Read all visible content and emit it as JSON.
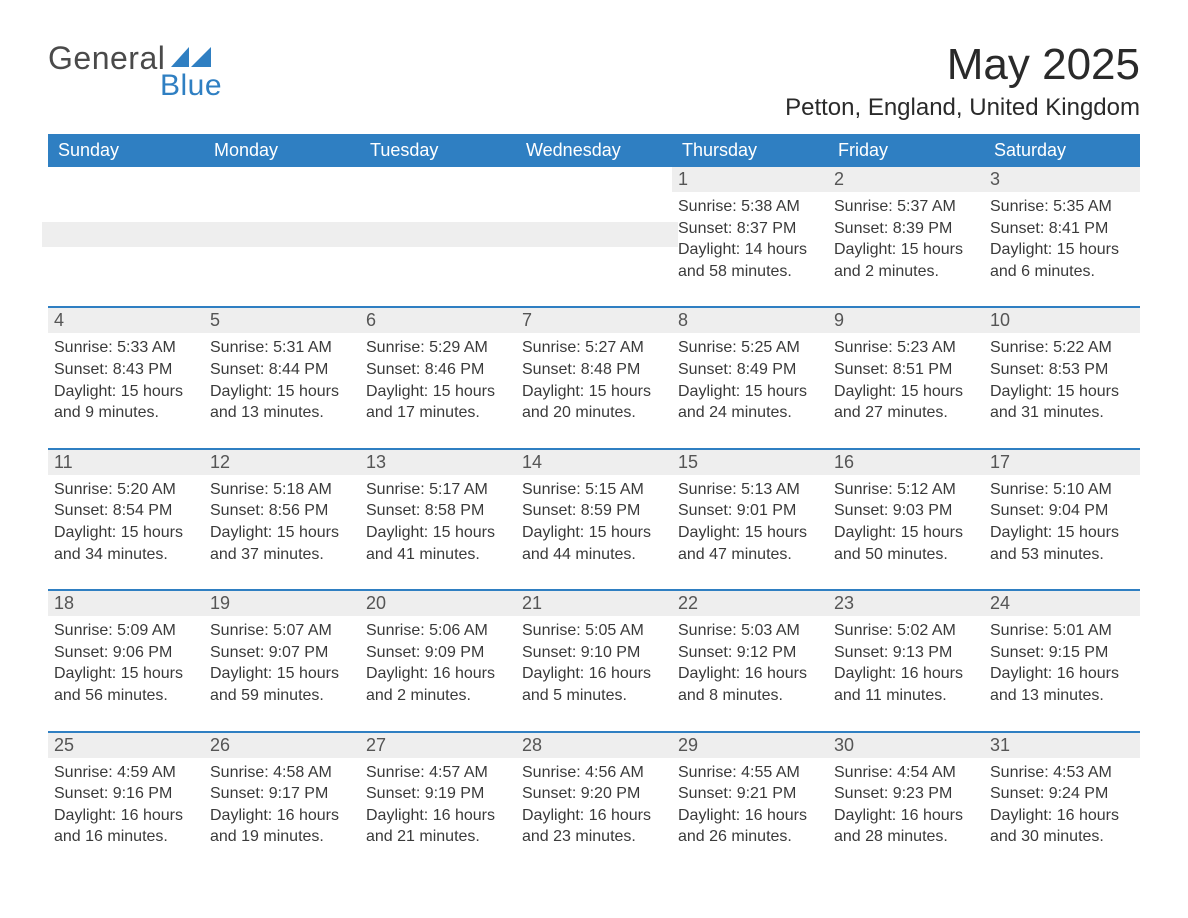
{
  "logo": {
    "general": "General",
    "blue": "Blue"
  },
  "colors": {
    "accent": "#2f7fc2",
    "header_text": "#ffffff",
    "daynum_bg": "#eeeeee",
    "text": "#3a3a3a",
    "page_bg": "#ffffff"
  },
  "typography": {
    "title_fontsize": 44,
    "location_fontsize": 24,
    "header_fontsize": 18,
    "daynum_fontsize": 18,
    "body_fontsize": 16,
    "font_family": "Arial"
  },
  "title": "May 2025",
  "location": "Petton, England, United Kingdom",
  "weekday_headers": [
    "Sunday",
    "Monday",
    "Tuesday",
    "Wednesday",
    "Thursday",
    "Friday",
    "Saturday"
  ],
  "calendar": {
    "type": "table",
    "columns": 7,
    "rows": [
      [
        {
          "blank": true
        },
        {
          "blank": true
        },
        {
          "blank": true
        },
        {
          "blank": true
        },
        {
          "day": "1",
          "sunrise": "Sunrise: 5:38 AM",
          "sunset": "Sunset: 8:37 PM",
          "daylight": "Daylight: 14 hours and 58 minutes."
        },
        {
          "day": "2",
          "sunrise": "Sunrise: 5:37 AM",
          "sunset": "Sunset: 8:39 PM",
          "daylight": "Daylight: 15 hours and 2 minutes."
        },
        {
          "day": "3",
          "sunrise": "Sunrise: 5:35 AM",
          "sunset": "Sunset: 8:41 PM",
          "daylight": "Daylight: 15 hours and 6 minutes."
        }
      ],
      [
        {
          "day": "4",
          "sunrise": "Sunrise: 5:33 AM",
          "sunset": "Sunset: 8:43 PM",
          "daylight": "Daylight: 15 hours and 9 minutes."
        },
        {
          "day": "5",
          "sunrise": "Sunrise: 5:31 AM",
          "sunset": "Sunset: 8:44 PM",
          "daylight": "Daylight: 15 hours and 13 minutes."
        },
        {
          "day": "6",
          "sunrise": "Sunrise: 5:29 AM",
          "sunset": "Sunset: 8:46 PM",
          "daylight": "Daylight: 15 hours and 17 minutes."
        },
        {
          "day": "7",
          "sunrise": "Sunrise: 5:27 AM",
          "sunset": "Sunset: 8:48 PM",
          "daylight": "Daylight: 15 hours and 20 minutes."
        },
        {
          "day": "8",
          "sunrise": "Sunrise: 5:25 AM",
          "sunset": "Sunset: 8:49 PM",
          "daylight": "Daylight: 15 hours and 24 minutes."
        },
        {
          "day": "9",
          "sunrise": "Sunrise: 5:23 AM",
          "sunset": "Sunset: 8:51 PM",
          "daylight": "Daylight: 15 hours and 27 minutes."
        },
        {
          "day": "10",
          "sunrise": "Sunrise: 5:22 AM",
          "sunset": "Sunset: 8:53 PM",
          "daylight": "Daylight: 15 hours and 31 minutes."
        }
      ],
      [
        {
          "day": "11",
          "sunrise": "Sunrise: 5:20 AM",
          "sunset": "Sunset: 8:54 PM",
          "daylight": "Daylight: 15 hours and 34 minutes."
        },
        {
          "day": "12",
          "sunrise": "Sunrise: 5:18 AM",
          "sunset": "Sunset: 8:56 PM",
          "daylight": "Daylight: 15 hours and 37 minutes."
        },
        {
          "day": "13",
          "sunrise": "Sunrise: 5:17 AM",
          "sunset": "Sunset: 8:58 PM",
          "daylight": "Daylight: 15 hours and 41 minutes."
        },
        {
          "day": "14",
          "sunrise": "Sunrise: 5:15 AM",
          "sunset": "Sunset: 8:59 PM",
          "daylight": "Daylight: 15 hours and 44 minutes."
        },
        {
          "day": "15",
          "sunrise": "Sunrise: 5:13 AM",
          "sunset": "Sunset: 9:01 PM",
          "daylight": "Daylight: 15 hours and 47 minutes."
        },
        {
          "day": "16",
          "sunrise": "Sunrise: 5:12 AM",
          "sunset": "Sunset: 9:03 PM",
          "daylight": "Daylight: 15 hours and 50 minutes."
        },
        {
          "day": "17",
          "sunrise": "Sunrise: 5:10 AM",
          "sunset": "Sunset: 9:04 PM",
          "daylight": "Daylight: 15 hours and 53 minutes."
        }
      ],
      [
        {
          "day": "18",
          "sunrise": "Sunrise: 5:09 AM",
          "sunset": "Sunset: 9:06 PM",
          "daylight": "Daylight: 15 hours and 56 minutes."
        },
        {
          "day": "19",
          "sunrise": "Sunrise: 5:07 AM",
          "sunset": "Sunset: 9:07 PM",
          "daylight": "Daylight: 15 hours and 59 minutes."
        },
        {
          "day": "20",
          "sunrise": "Sunrise: 5:06 AM",
          "sunset": "Sunset: 9:09 PM",
          "daylight": "Daylight: 16 hours and 2 minutes."
        },
        {
          "day": "21",
          "sunrise": "Sunrise: 5:05 AM",
          "sunset": "Sunset: 9:10 PM",
          "daylight": "Daylight: 16 hours and 5 minutes."
        },
        {
          "day": "22",
          "sunrise": "Sunrise: 5:03 AM",
          "sunset": "Sunset: 9:12 PM",
          "daylight": "Daylight: 16 hours and 8 minutes."
        },
        {
          "day": "23",
          "sunrise": "Sunrise: 5:02 AM",
          "sunset": "Sunset: 9:13 PM",
          "daylight": "Daylight: 16 hours and 11 minutes."
        },
        {
          "day": "24",
          "sunrise": "Sunrise: 5:01 AM",
          "sunset": "Sunset: 9:15 PM",
          "daylight": "Daylight: 16 hours and 13 minutes."
        }
      ],
      [
        {
          "day": "25",
          "sunrise": "Sunrise: 4:59 AM",
          "sunset": "Sunset: 9:16 PM",
          "daylight": "Daylight: 16 hours and 16 minutes."
        },
        {
          "day": "26",
          "sunrise": "Sunrise: 4:58 AM",
          "sunset": "Sunset: 9:17 PM",
          "daylight": "Daylight: 16 hours and 19 minutes."
        },
        {
          "day": "27",
          "sunrise": "Sunrise: 4:57 AM",
          "sunset": "Sunset: 9:19 PM",
          "daylight": "Daylight: 16 hours and 21 minutes."
        },
        {
          "day": "28",
          "sunrise": "Sunrise: 4:56 AM",
          "sunset": "Sunset: 9:20 PM",
          "daylight": "Daylight: 16 hours and 23 minutes."
        },
        {
          "day": "29",
          "sunrise": "Sunrise: 4:55 AM",
          "sunset": "Sunset: 9:21 PM",
          "daylight": "Daylight: 16 hours and 26 minutes."
        },
        {
          "day": "30",
          "sunrise": "Sunrise: 4:54 AM",
          "sunset": "Sunset: 9:23 PM",
          "daylight": "Daylight: 16 hours and 28 minutes."
        },
        {
          "day": "31",
          "sunrise": "Sunrise: 4:53 AM",
          "sunset": "Sunset: 9:24 PM",
          "daylight": "Daylight: 16 hours and 30 minutes."
        }
      ]
    ]
  }
}
